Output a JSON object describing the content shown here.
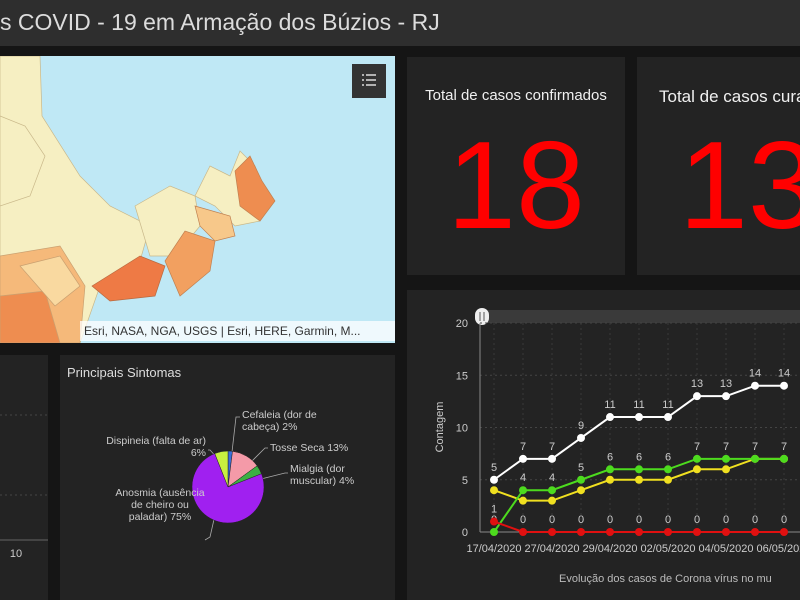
{
  "header": {
    "title": "s COVID - 19 em Armação dos Búzios - RJ"
  },
  "map": {
    "attribution": "Esri, NASA, NGA, USGS | Esri, HERE, Garmin, M..."
  },
  "cards": [
    {
      "title": "Total de casos confirmados",
      "value": 18
    },
    {
      "title": "Total de casos cura",
      "value": 13
    }
  ],
  "partial_panel": {
    "tick": 10
  },
  "chart_data": [
    {
      "type": "line",
      "ylabel": "Contagem",
      "footer": "Evolução dos casos de Corona vírus no mu",
      "categories": [
        "17/04/2020",
        null,
        "27/04/2020",
        null,
        "29/04/2020",
        null,
        "02/05/2020",
        null,
        "04/05/2020",
        null,
        "06/05/2020"
      ],
      "ylim": [
        0,
        20
      ],
      "yticks": [
        0,
        5,
        10,
        15,
        20
      ],
      "grid": true,
      "series": [
        {
          "color": "#ffffff",
          "labels": true,
          "values": [
            5,
            7,
            7,
            9,
            11,
            11,
            11,
            13,
            13,
            14,
            14
          ]
        },
        {
          "color": "#f0e020",
          "labels": false,
          "values": [
            4,
            3,
            3,
            4,
            5,
            5,
            5,
            6,
            6,
            7,
            7
          ]
        },
        {
          "color": "#4ddb1e",
          "labels": true,
          "values": [
            0,
            4,
            4,
            5,
            6,
            6,
            6,
            7,
            7,
            7,
            7
          ]
        },
        {
          "color": "#e01010",
          "labels": true,
          "values": [
            1,
            0,
            0,
            0,
            0,
            0,
            0,
            0,
            0,
            0,
            0
          ]
        }
      ]
    },
    {
      "type": "pie",
      "title": "Principais Sintomas",
      "categories": [
        "Cefaleia (dor de cabeça)",
        "Tosse Seca",
        "Mialgia (dor muscular)",
        "Anosmia (ausência de cheiro ou paladar)",
        "Dispineia (falta de ar)"
      ],
      "values": [
        2,
        13,
        4,
        75,
        6
      ],
      "value_labels": [
        "2%",
        "13%",
        "4%",
        "75%",
        "6%"
      ],
      "colors": [
        "#3a6fd8",
        "#f49aa8",
        "#3cb043",
        "#a020f0",
        "#c8f040"
      ]
    }
  ]
}
